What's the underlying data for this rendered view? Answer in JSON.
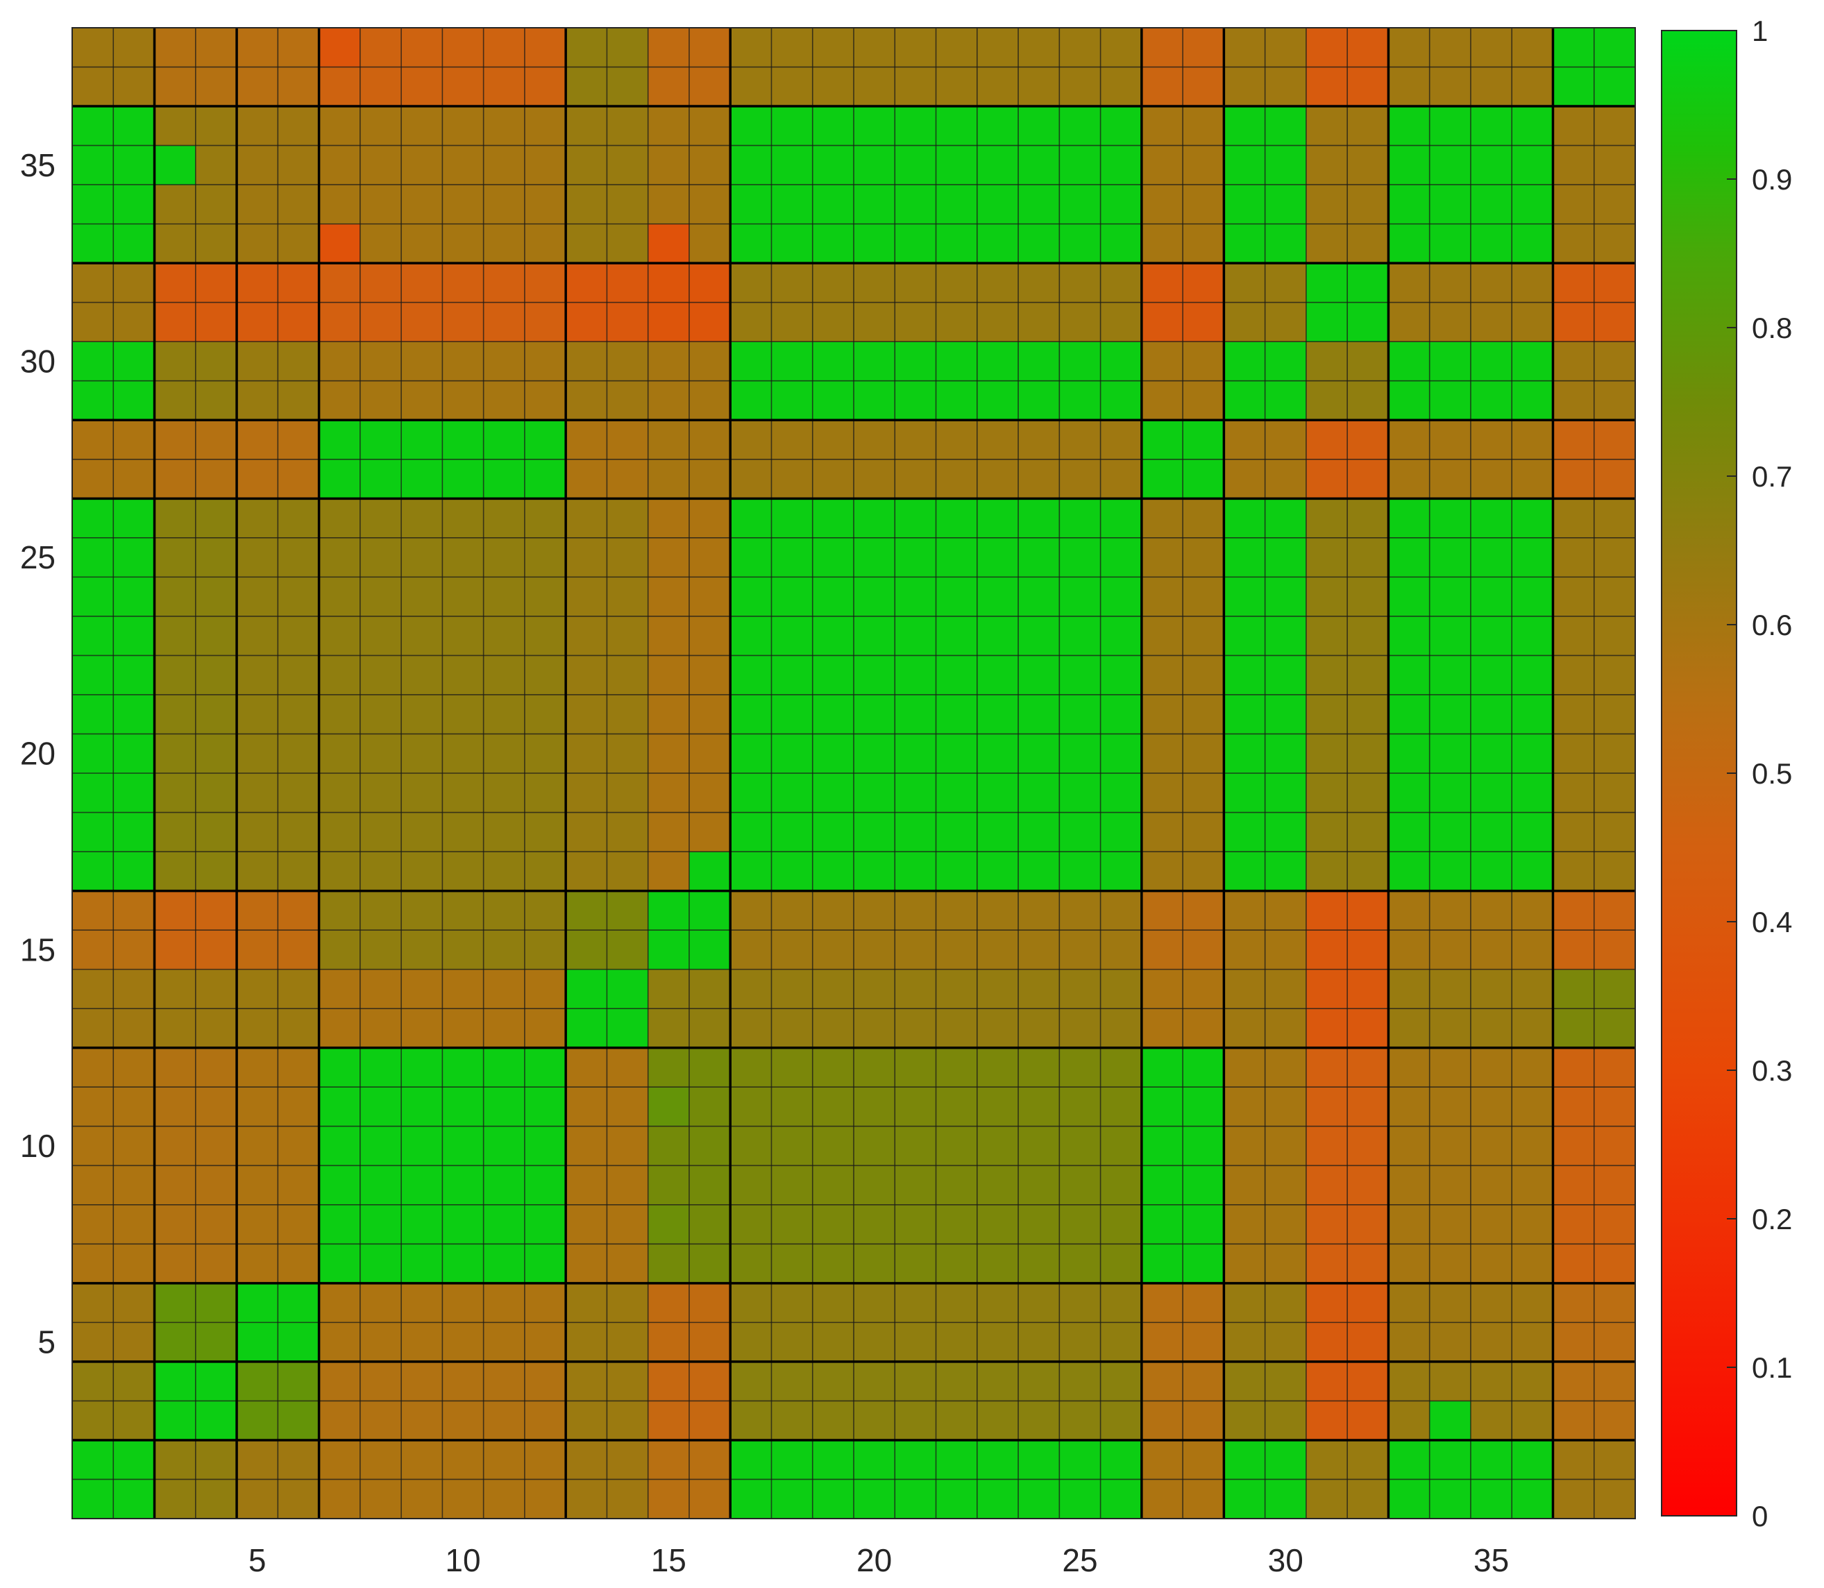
{
  "chart_data": {
    "type": "heatmap",
    "title": "",
    "xlabel": "",
    "ylabel": "",
    "n_rows": 38,
    "n_cols": 38,
    "x_ticks": [
      5,
      10,
      15,
      20,
      25,
      30,
      35
    ],
    "x_tick_labels": [
      "5",
      "10",
      "15",
      "20",
      "25",
      "30",
      "35"
    ],
    "y_ticks": [
      5,
      10,
      15,
      20,
      25,
      30,
      35
    ],
    "y_tick_labels": [
      "5",
      "10",
      "15",
      "20",
      "25",
      "30",
      "35"
    ],
    "y_direction": "normal",
    "grid": true,
    "block_boundaries": [
      2,
      4,
      6,
      12,
      16,
      26,
      28,
      32,
      36
    ],
    "colorbar": {
      "location": "right",
      "min": 0,
      "max": 1,
      "ticks": [
        0,
        0.1,
        0.2,
        0.3,
        0.4,
        0.5,
        0.6,
        0.7,
        0.8,
        0.9,
        1
      ],
      "tick_labels": [
        "0",
        "0.1",
        "0.2",
        "0.3",
        "0.4",
        "0.5",
        "0.6",
        "0.7",
        "0.8",
        "0.9",
        "1"
      ],
      "colors": [
        [
          0.0,
          "#ff0000"
        ],
        [
          0.3,
          "#e84806"
        ],
        [
          0.45,
          "#d36010"
        ],
        [
          0.55,
          "#b87012"
        ],
        [
          0.65,
          "#947c10"
        ],
        [
          0.75,
          "#708c08"
        ],
        [
          0.85,
          "#48a808"
        ],
        [
          0.92,
          "#20c008"
        ],
        [
          1.0,
          "#00d61a"
        ]
      ]
    },
    "groups": [
      {
        "label": "1-2",
        "start": 1,
        "end": 2
      },
      {
        "label": "3-4",
        "start": 3,
        "end": 4
      },
      {
        "label": "5-6",
        "start": 5,
        "end": 6
      },
      {
        "label": "7-12",
        "start": 7,
        "end": 12
      },
      {
        "label": "13-14",
        "start": 13,
        "end": 14
      },
      {
        "label": "15-16",
        "start": 15,
        "end": 16
      },
      {
        "label": "17-26",
        "start": 17,
        "end": 26
      },
      {
        "label": "27-28",
        "start": 27,
        "end": 28
      },
      {
        "label": "29-30",
        "start": 29,
        "end": 30
      },
      {
        "label": "31-32",
        "start": 31,
        "end": 32
      },
      {
        "label": "33-36",
        "start": 33,
        "end": 36
      },
      {
        "label": "37-38",
        "start": 37,
        "end": 38
      }
    ],
    "group_values": [
      [
        0.97,
        0.66,
        0.62,
        0.58,
        0.62,
        0.55,
        0.97,
        0.58,
        0.97,
        0.64,
        0.97,
        0.62
      ],
      [
        0.66,
        0.97,
        0.78,
        0.57,
        0.63,
        0.5,
        0.68,
        0.56,
        0.66,
        0.42,
        0.64,
        0.55
      ],
      [
        0.62,
        0.78,
        0.97,
        0.58,
        0.63,
        0.52,
        0.66,
        0.55,
        0.64,
        0.42,
        0.62,
        0.54
      ],
      [
        0.58,
        0.57,
        0.58,
        0.97,
        0.58,
        0.74,
        0.72,
        0.97,
        0.6,
        0.45,
        0.6,
        0.47
      ],
      [
        0.62,
        0.63,
        0.63,
        0.58,
        0.97,
        0.66,
        0.65,
        0.58,
        0.62,
        0.4,
        0.64,
        0.72
      ],
      [
        0.55,
        0.48,
        0.52,
        0.66,
        0.72,
        0.97,
        0.62,
        0.54,
        0.6,
        0.4,
        0.6,
        0.48
      ],
      [
        0.97,
        0.68,
        0.66,
        0.66,
        0.64,
        0.58,
        0.97,
        0.62,
        0.97,
        0.66,
        0.97,
        0.63
      ],
      [
        0.58,
        0.56,
        0.55,
        0.97,
        0.58,
        0.6,
        0.62,
        0.97,
        0.6,
        0.44,
        0.6,
        0.48
      ],
      [
        0.97,
        0.66,
        0.64,
        0.6,
        0.62,
        0.6,
        0.97,
        0.6,
        0.97,
        0.66,
        0.97,
        0.62
      ],
      [
        0.62,
        0.42,
        0.42,
        0.45,
        0.4,
        0.38,
        0.64,
        0.4,
        0.64,
        0.97,
        0.62,
        0.42
      ],
      [
        0.97,
        0.64,
        0.62,
        0.6,
        0.64,
        0.6,
        0.97,
        0.6,
        0.97,
        0.62,
        0.97,
        0.62
      ],
      [
        0.62,
        0.56,
        0.55,
        0.47,
        0.66,
        0.52,
        0.63,
        0.48,
        0.62,
        0.42,
        0.62,
        0.97
      ]
    ],
    "cell_overrides": [
      {
        "row": 3,
        "col": 3,
        "value": 0.97
      },
      {
        "row": 3,
        "col": 34,
        "value": 0.97
      },
      {
        "row": 17,
        "col": 16,
        "value": 0.97
      },
      {
        "row": 16,
        "col": 15,
        "value": 0.97
      },
      {
        "row": 35,
        "col": 3,
        "value": 0.97
      },
      {
        "row": 8,
        "col": 15,
        "value": 0.76
      },
      {
        "row": 11,
        "col": 15,
        "value": 0.78
      },
      {
        "row": 33,
        "col": 15,
        "value": 0.36
      },
      {
        "row": 38,
        "col": 7,
        "value": 0.38
      },
      {
        "row": 33,
        "col": 7,
        "value": 0.36
      }
    ]
  }
}
